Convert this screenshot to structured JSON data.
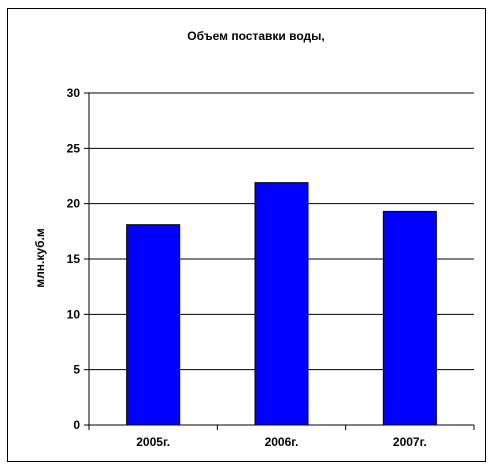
{
  "chart_data": {
    "type": "bar",
    "title": "Объем поставки воды,",
    "ylabel": "млн.куб.м",
    "xlabel": "",
    "categories": [
      "2005г.",
      "2006г.",
      "2007г."
    ],
    "values": [
      18.1,
      21.9,
      19.3
    ],
    "ylim": [
      0,
      30
    ],
    "yticks": [
      0,
      5,
      10,
      15,
      20,
      25,
      30
    ],
    "grid": true,
    "legend": "none",
    "colors": {
      "bar": "#0000ff",
      "bar_stroke": "#000000",
      "grid": "#000000"
    }
  }
}
